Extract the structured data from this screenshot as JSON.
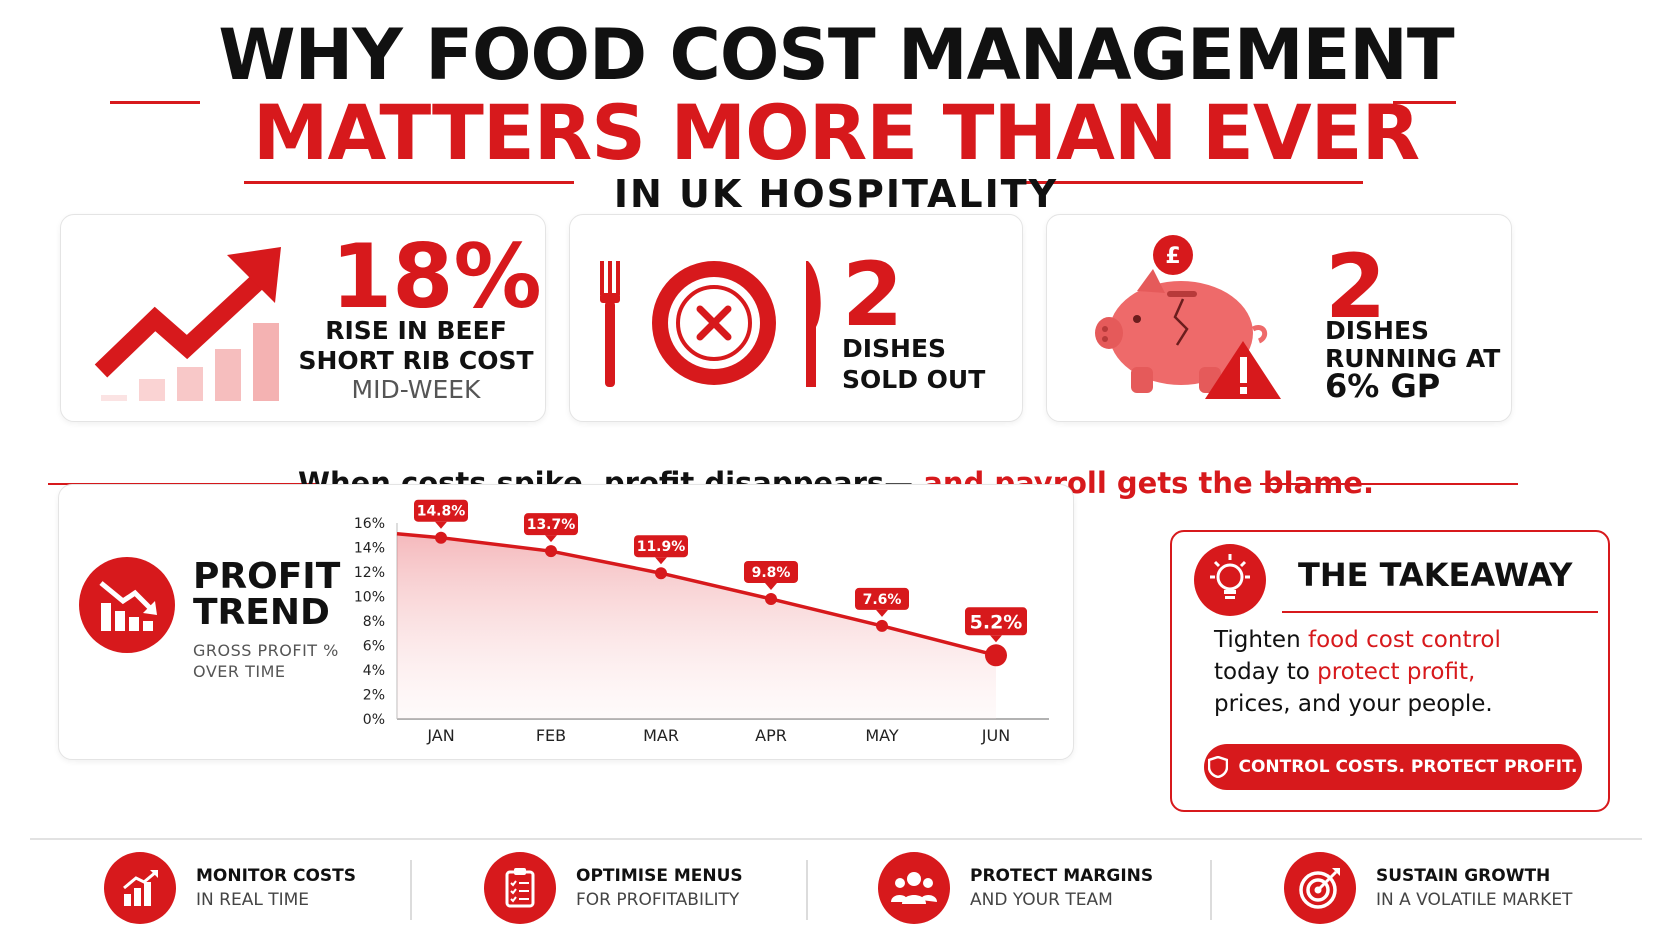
{
  "header": {
    "title_line1": "WHY FOOD COST MANAGEMENT",
    "title_line2": "MATTERS MORE THAN EVER",
    "title_line3": "IN UK HOSPITALITY"
  },
  "stats": [
    {
      "value": "18%",
      "line1": "RISE IN BEEF",
      "line2": "SHORT RIB COST",
      "line3": "MID-WEEK",
      "icon": "trend-up-arrow-icon"
    },
    {
      "value": "2",
      "line1": "DISHES",
      "line2": "SOLD OUT",
      "icon": "plate-cross-icon"
    },
    {
      "value": "2",
      "line1": "DISHES",
      "line2": "RUNNING AT",
      "highlight": "6% GP",
      "icon": "piggy-bank-warning-icon",
      "coin_symbol": "£"
    }
  ],
  "callout": {
    "text_dark": "When costs spike, profit disappears—",
    "text_red": " and payroll gets the blame."
  },
  "profit_trend": {
    "title_line1": "PROFIT",
    "title_line2": "TREND",
    "subtitle_line1": "GROSS PROFIT %",
    "subtitle_line2": "OVER TIME"
  },
  "chart_data": {
    "type": "area",
    "categories": [
      "JAN",
      "FEB",
      "MAR",
      "APR",
      "MAY",
      "JUN"
    ],
    "series": [
      {
        "values": [
          14.8,
          13.7,
          11.9,
          9.8,
          7.6,
          5.2
        ]
      }
    ],
    "data_labels": [
      "14.8%",
      "13.7%",
      "11.9%",
      "9.8%",
      "7.6%",
      "5.2%"
    ],
    "y_ticks": [
      "0%",
      "2%",
      "4%",
      "6%",
      "8%",
      "10%",
      "12%",
      "14%",
      "16%"
    ],
    "ylim": [
      0,
      16
    ],
    "grid": false,
    "line_color": "#d7191c"
  },
  "takeaway": {
    "title": "THE TAKEAWAY",
    "body_1": "Tighten ",
    "body_red_1": "food cost control",
    "body_2": "today to ",
    "body_red_2": "protect profit,",
    "body_3": "prices, and your people.",
    "button_label": "CONTROL COSTS. PROTECT PROFIT."
  },
  "features": [
    {
      "title": "MONITOR COSTS",
      "sub": "IN REAL TIME",
      "icon": "bar-chart-up-icon"
    },
    {
      "title": "OPTIMISE MENUS",
      "sub": "FOR PROFITABILITY",
      "icon": "clipboard-checklist-icon"
    },
    {
      "title": "PROTECT MARGINS",
      "sub": "AND YOUR TEAM",
      "icon": "team-people-icon"
    },
    {
      "title": "SUSTAIN GROWTH",
      "sub": "IN A VOLATILE MARKET",
      "icon": "target-arrow-icon"
    }
  ],
  "colors": {
    "accent": "#d7191c",
    "text": "#111111",
    "muted": "#555555"
  }
}
